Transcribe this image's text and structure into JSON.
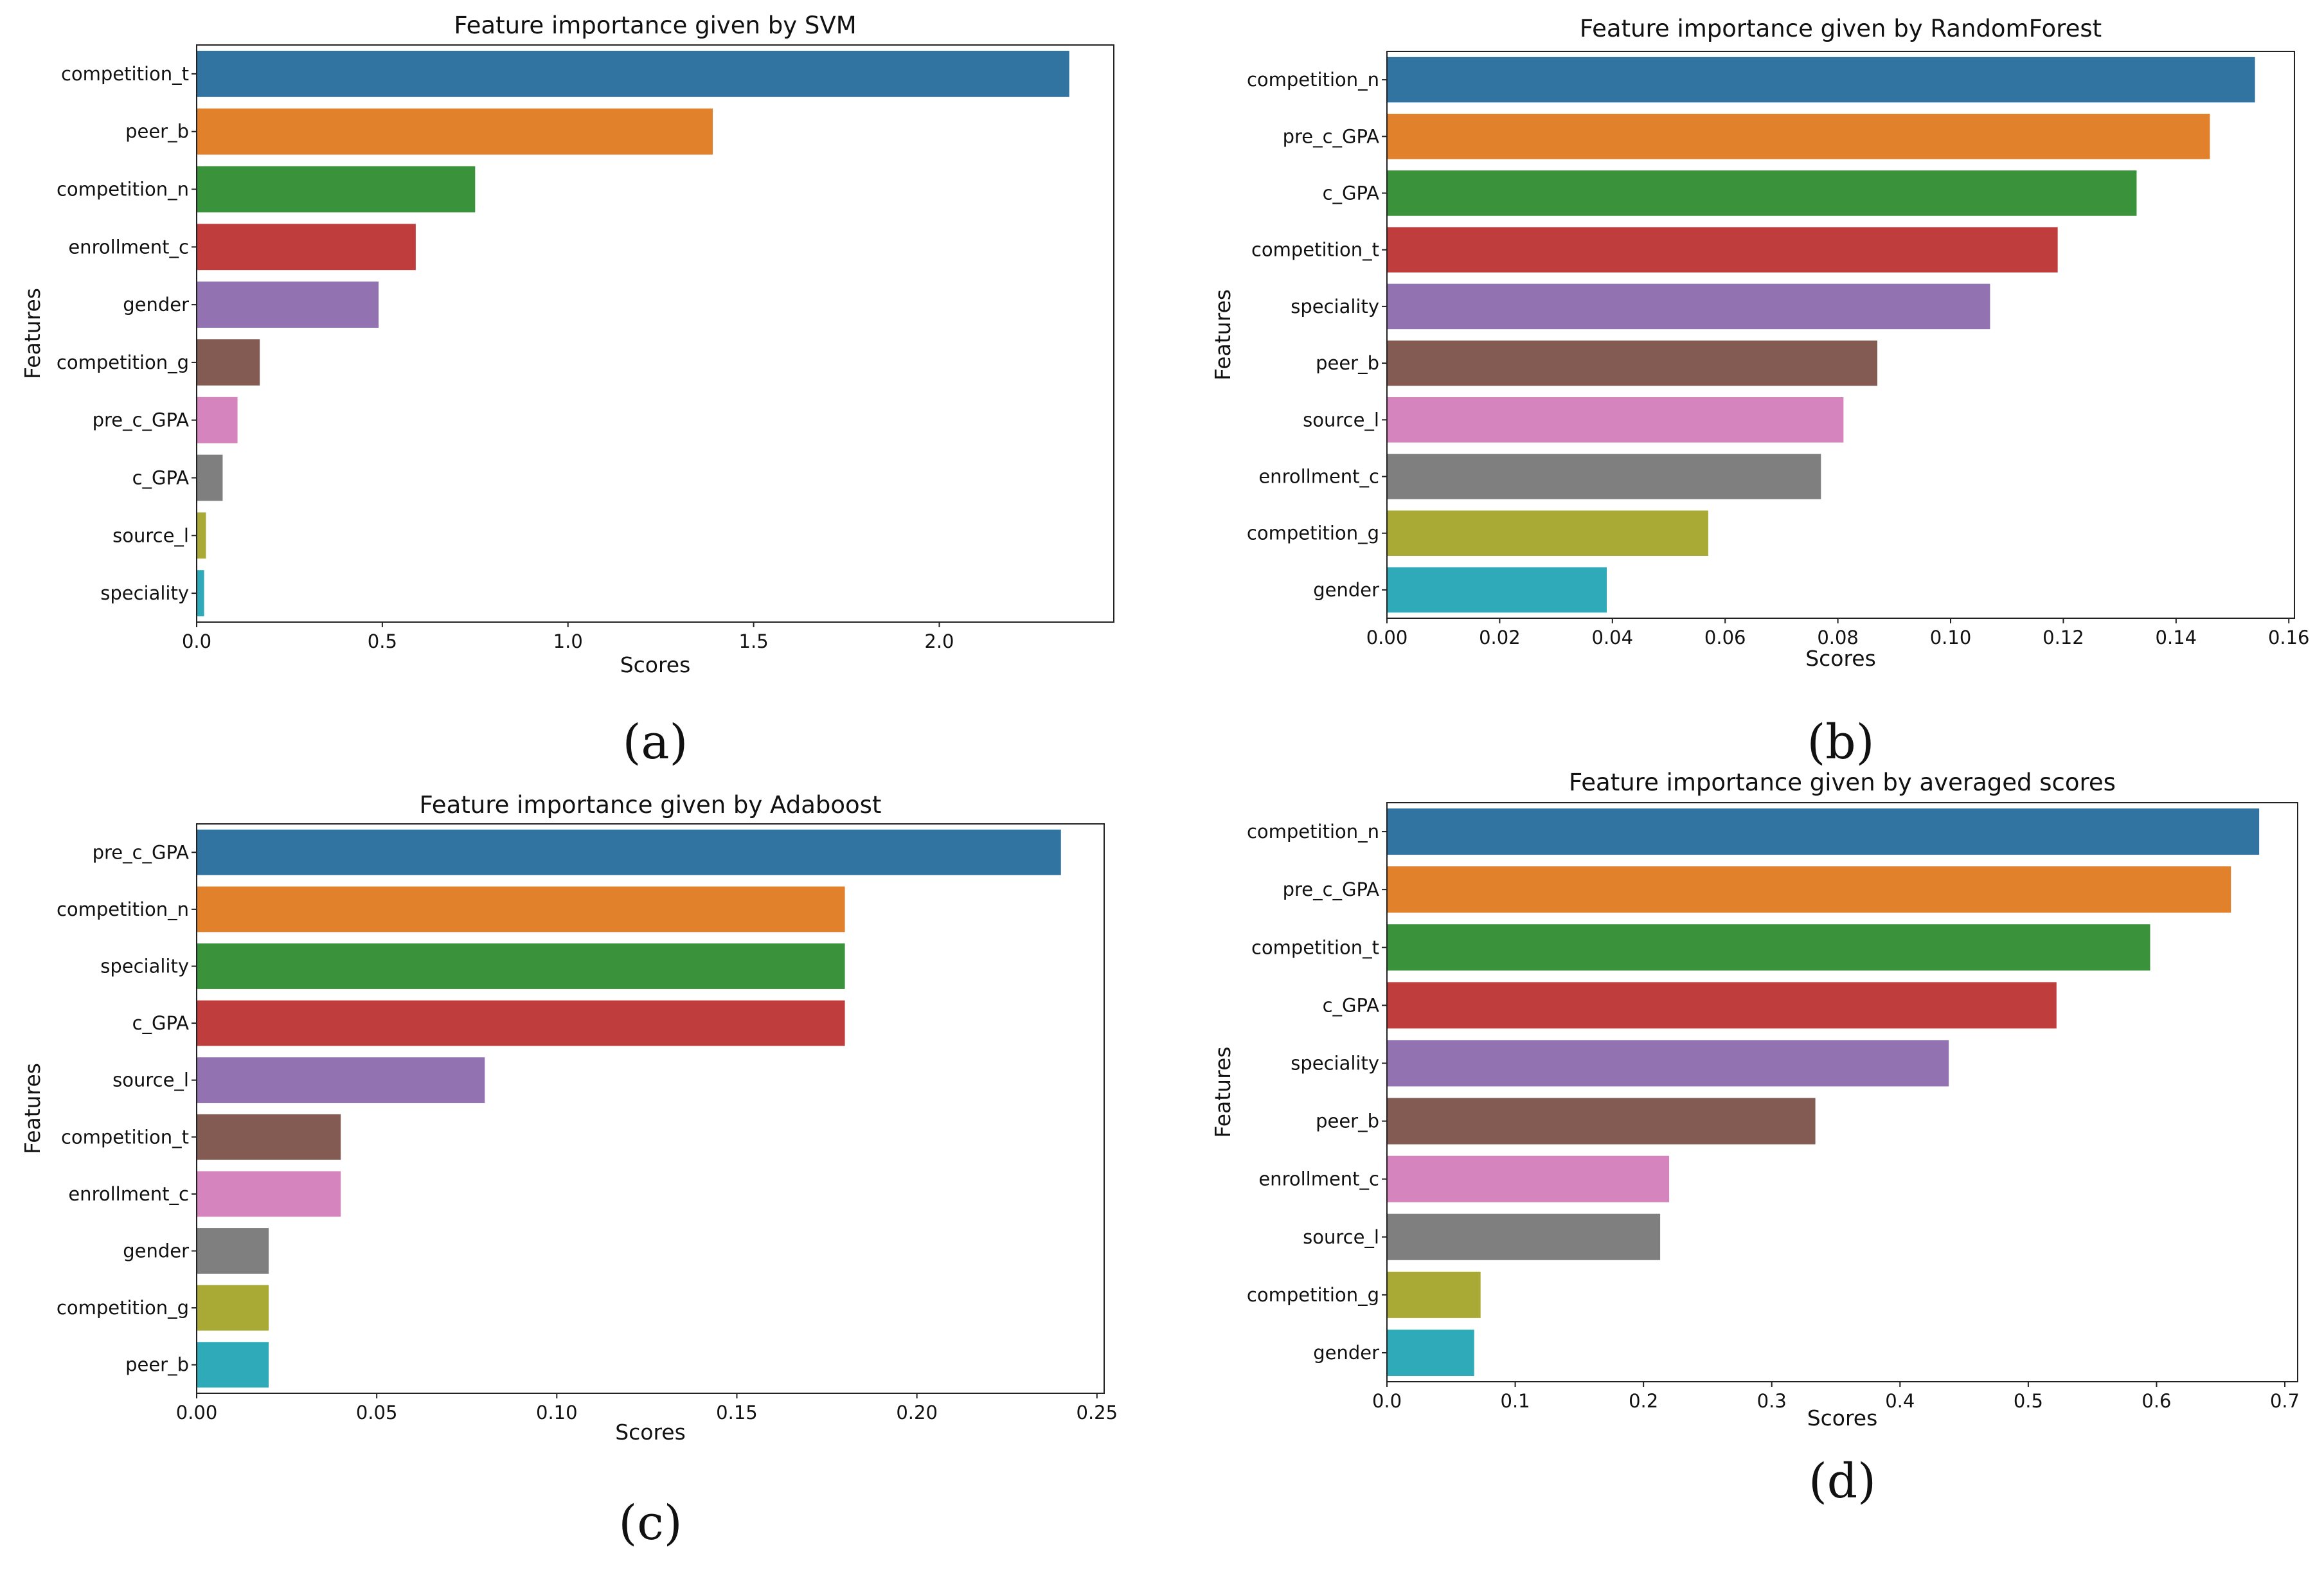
{
  "chart_data": [
    {
      "id": "a",
      "type": "bar",
      "orientation": "horizontal",
      "title": "Feature importance given by SVM",
      "xlabel": "Scores",
      "ylabel": "Features",
      "caption": "(a)",
      "xlim": [
        0,
        2.47
      ],
      "xticks": [
        0,
        0.5,
        1,
        1.5,
        2
      ],
      "xtick_labels": [
        "0.0",
        "0.5",
        "1.0",
        "1.5",
        "2.0"
      ],
      "categories": [
        "competition_t",
        "peer_b",
        "competition_n",
        "enrollment_c",
        "gender",
        "competition_g",
        "pre_c_GPA",
        "c_GPA",
        "source_l",
        "speciality"
      ],
      "values": [
        2.35,
        1.39,
        0.75,
        0.59,
        0.49,
        0.17,
        0.11,
        0.07,
        0.025,
        0.02
      ],
      "grid": false
    },
    {
      "id": "b",
      "type": "bar",
      "orientation": "horizontal",
      "title": "Feature importance given by RandomForest",
      "xlabel": "Scores",
      "ylabel": "Features",
      "caption": "(b)",
      "xlim": [
        0,
        0.161
      ],
      "xticks": [
        0,
        0.02,
        0.04,
        0.06,
        0.08,
        0.1,
        0.12,
        0.14,
        0.16
      ],
      "xtick_labels": [
        "0.00",
        "0.02",
        "0.04",
        "0.06",
        "0.08",
        "0.10",
        "0.12",
        "0.14",
        "0.16"
      ],
      "categories": [
        "competition_n",
        "pre_c_GPA",
        "c_GPA",
        "competition_t",
        "speciality",
        "peer_b",
        "source_l",
        "enrollment_c",
        "competition_g",
        "gender"
      ],
      "values": [
        0.154,
        0.146,
        0.133,
        0.119,
        0.107,
        0.087,
        0.081,
        0.077,
        0.057,
        0.039
      ],
      "grid": false
    },
    {
      "id": "c",
      "type": "bar",
      "orientation": "horizontal",
      "title": "Feature importance given by Adaboost",
      "xlabel": "Scores",
      "ylabel": "Features",
      "caption": "(c)",
      "xlim": [
        0,
        0.252
      ],
      "xticks": [
        0,
        0.05,
        0.1,
        0.15,
        0.2,
        0.25
      ],
      "xtick_labels": [
        "0.00",
        "0.05",
        "0.10",
        "0.15",
        "0.20",
        "0.25"
      ],
      "categories": [
        "pre_c_GPA",
        "competition_n",
        "speciality",
        "c_GPA",
        "source_l",
        "competition_t",
        "enrollment_c",
        "gender",
        "competition_g",
        "peer_b"
      ],
      "values": [
        0.24,
        0.18,
        0.18,
        0.18,
        0.08,
        0.04,
        0.04,
        0.02,
        0.02,
        0.02
      ],
      "grid": false
    },
    {
      "id": "d",
      "type": "bar",
      "orientation": "horizontal",
      "title": "Feature importance given by averaged scores",
      "xlabel": "Scores",
      "ylabel": "Features",
      "caption": "(d)",
      "xlim": [
        0,
        0.71
      ],
      "xticks": [
        0,
        0.1,
        0.2,
        0.3,
        0.4,
        0.5,
        0.6,
        0.7
      ],
      "xtick_labels": [
        "0.0",
        "0.1",
        "0.2",
        "0.3",
        "0.4",
        "0.5",
        "0.6",
        "0.7"
      ],
      "categories": [
        "competition_n",
        "pre_c_GPA",
        "competition_t",
        "c_GPA",
        "speciality",
        "peer_b",
        "enrollment_c",
        "source_l",
        "competition_g",
        "gender"
      ],
      "values": [
        0.68,
        0.658,
        0.595,
        0.522,
        0.438,
        0.334,
        0.22,
        0.213,
        0.073,
        0.068
      ],
      "grid": false
    }
  ],
  "colors": [
    "#3274a1",
    "#e1812c",
    "#3a923a",
    "#c03d3e",
    "#9372b2",
    "#845b53",
    "#d684bd",
    "#7f7f7f",
    "#a9aa35",
    "#2eaab8"
  ]
}
